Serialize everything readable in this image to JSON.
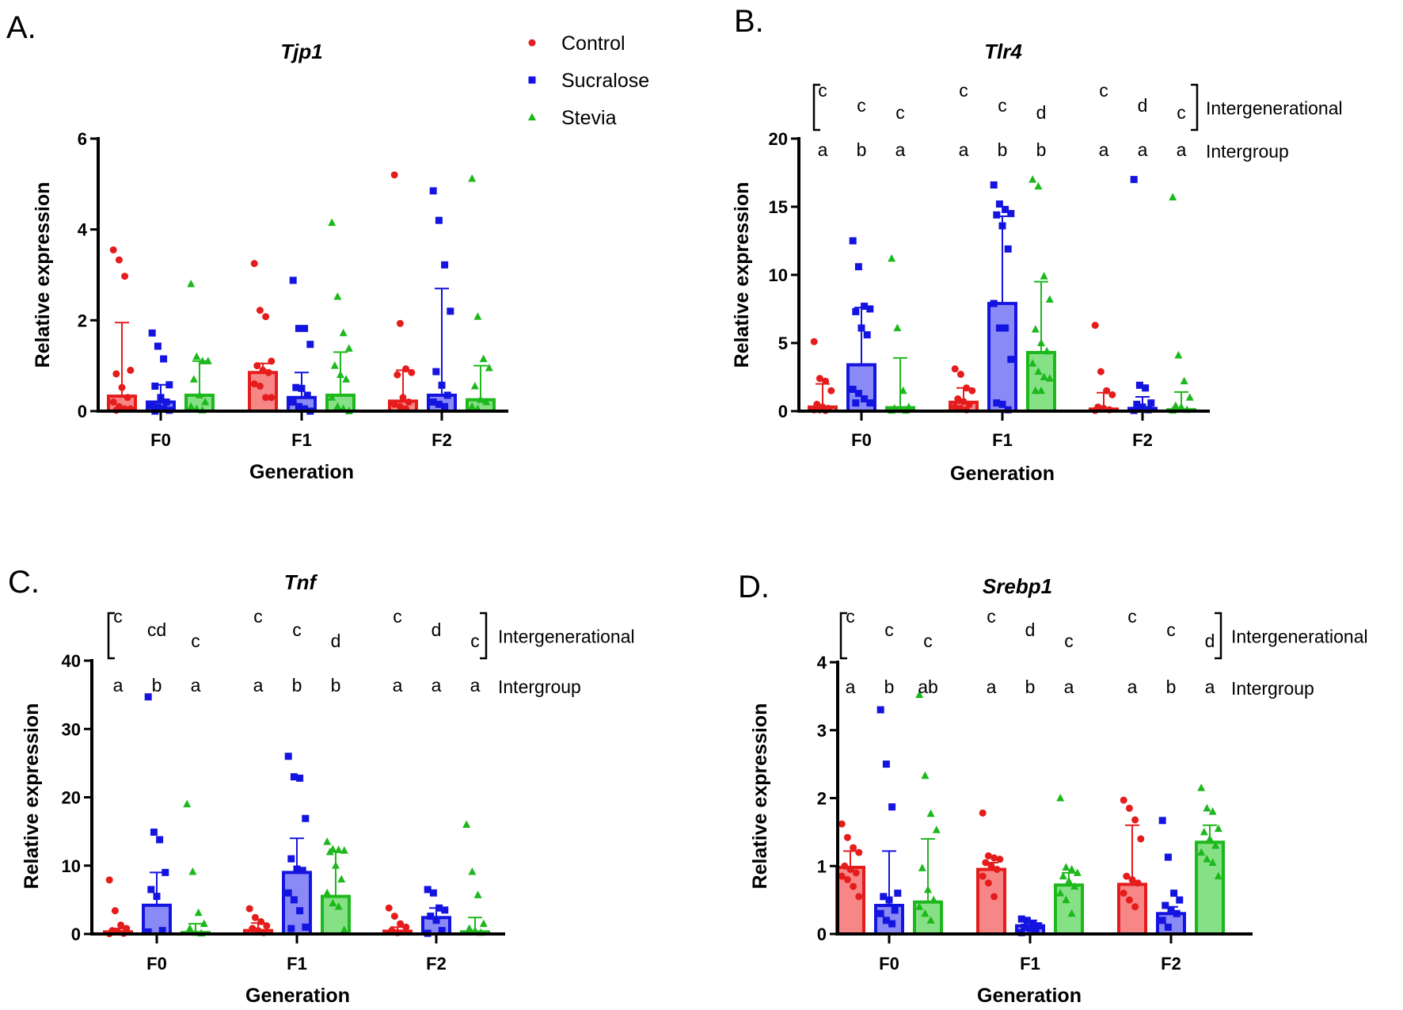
{
  "legend": [
    {
      "name": "Control",
      "color": "#e51c1c",
      "marker": "circle"
    },
    {
      "name": "Sucralose",
      "color": "#1414e0",
      "marker": "square"
    },
    {
      "name": "Stevia",
      "color": "#1cb81c",
      "marker": "triangle"
    }
  ],
  "bar_fill_colors": [
    "#f78787",
    "#8a8af7",
    "#86e086"
  ],
  "annotation_labels": {
    "intergenerational": "Intergenerational",
    "intergroup": "Intergroup"
  },
  "chart_data": [
    {
      "type": "bar",
      "panel_label": "A.",
      "title": "Tjp1",
      "xlabel": "Generation",
      "ylabel": "Relative expression",
      "categories": [
        "F0",
        "F1",
        "F2"
      ],
      "ylim": [
        0,
        6
      ],
      "yticks": [
        "0",
        "2",
        "4",
        "6"
      ],
      "grid": false,
      "legend_position": "top-right",
      "series": [
        {
          "name": "Control",
          "values": [
            0.33,
            0.85,
            0.22
          ],
          "error_upper": [
            1.95,
            1.05,
            0.9
          ],
          "points": [
            [
              3.55,
              3.33,
              2.97,
              0.9,
              0.82,
              0.52,
              0.3,
              0.2,
              0.1,
              0.05,
              0.05,
              0.02
            ],
            [
              3.25,
              2.22,
              2.08,
              1.1,
              1.0,
              0.9,
              0.85,
              0.6,
              0.55,
              0.3,
              0.3
            ],
            [
              5.2,
              1.93,
              0.93,
              0.85,
              0.8,
              0.3,
              0.2,
              0.15,
              0.1,
              0.05
            ]
          ]
        },
        {
          "name": "Sucralose",
          "values": [
            0.2,
            0.3,
            0.35
          ],
          "error_upper": [
            0.58,
            0.85,
            2.7
          ],
          "points": [
            [
              1.72,
              1.43,
              1.15,
              0.58,
              0.55,
              0.3,
              0.2,
              0.12,
              0.08,
              0.05,
              0.02,
              0
            ],
            [
              2.88,
              1.82,
              1.82,
              1.47,
              0.52,
              0.5,
              0.35,
              0.2,
              0.1,
              0.05,
              0
            ],
            [
              4.85,
              4.2,
              3.22,
              2.2,
              0.87,
              0.57,
              0.35,
              0.2,
              0.15,
              0.1
            ]
          ]
        },
        {
          "name": "Stevia",
          "values": [
            0.35,
            0.35,
            0.25
          ],
          "error_upper": [
            1.1,
            1.3,
            1.0
          ],
          "points": [
            [
              2.8,
              1.2,
              1.1,
              1.1,
              0.7,
              0.35,
              0.2,
              0.1,
              0.05,
              0.02
            ],
            [
              4.15,
              2.52,
              1.72,
              1.38,
              1.0,
              0.8,
              0.7,
              0.3,
              0.1,
              0.05,
              0
            ],
            [
              5.12,
              2.08,
              1.15,
              0.95,
              0.55,
              0.25,
              0.2,
              0.1,
              0.05
            ]
          ]
        }
      ]
    },
    {
      "type": "bar",
      "panel_label": "B.",
      "title": "Tlr4",
      "xlabel": "Generation",
      "ylabel": "Relative expression",
      "categories": [
        "F0",
        "F1",
        "F2"
      ],
      "ylim": [
        0,
        20
      ],
      "yticks": [
        "0",
        "5",
        "10",
        "15",
        "20"
      ],
      "grid": false,
      "intergenerational": [
        [
          "c",
          "c",
          "c"
        ],
        [
          "c",
          "c",
          "d"
        ],
        [
          "c",
          "d",
          "c"
        ]
      ],
      "intergroup": [
        [
          "a",
          "b",
          "a"
        ],
        [
          "a",
          "b",
          "b"
        ],
        [
          "a",
          "a",
          "a"
        ]
      ],
      "series": [
        {
          "name": "Control",
          "values": [
            0.3,
            0.65,
            0.15
          ],
          "error_upper": [
            2.0,
            1.7,
            1.35
          ],
          "points": [
            [
              5.1,
              2.4,
              2.2,
              1.5,
              0.5,
              0.3,
              0.2,
              0.1,
              0.1,
              0.05
            ],
            [
              3.1,
              2.7,
              1.7,
              1.5,
              0.9,
              0.7,
              0.5,
              0.3,
              0.2,
              0.1
            ],
            [
              6.3,
              2.9,
              1.5,
              1.2,
              0.3,
              0.2,
              0.1,
              0.05
            ]
          ]
        },
        {
          "name": "Sucralose",
          "values": [
            3.4,
            7.9,
            0.2
          ],
          "error_upper": [
            7.6,
            14.3,
            1.05
          ],
          "points": [
            [
              12.5,
              10.6,
              7.7,
              7.5,
              7.3,
              6.1,
              5.6,
              1.6,
              1.3,
              0.9,
              0.6,
              0.6
            ],
            [
              16.6,
              15.2,
              14.8,
              14.5,
              14.4,
              13.6,
              11.9,
              7.9,
              6.1,
              6.1,
              3.8,
              0.6,
              0.5,
              0.1
            ],
            [
              17,
              1.9,
              1.7,
              0.6,
              0.5,
              0.3,
              0.1,
              0.05
            ]
          ]
        },
        {
          "name": "Stevia",
          "values": [
            0.25,
            4.3,
            0.1
          ],
          "error_upper": [
            3.9,
            9.5,
            1.4
          ],
          "points": [
            [
              11.2,
              6.1,
              1.5,
              0.3,
              0.2,
              0.1,
              0.05,
              0.05
            ],
            [
              17,
              16.5,
              9.9,
              8.2,
              6,
              5,
              4.4,
              3.5,
              2.9,
              2.5,
              2.4,
              1.5,
              1.5
            ],
            [
              15.7,
              4.1,
              2.2,
              1.0,
              0.4,
              0.3,
              0.1,
              0.05
            ]
          ]
        }
      ]
    },
    {
      "type": "bar",
      "panel_label": "C.",
      "title": "Tnf",
      "xlabel": "Generation",
      "ylabel": "Relative expression",
      "categories": [
        "F0",
        "F1",
        "F2"
      ],
      "ylim": [
        0,
        40
      ],
      "yticks": [
        "0",
        "10",
        "20",
        "30",
        "40"
      ],
      "grid": false,
      "intergenerational": [
        [
          "c",
          "cd",
          "c"
        ],
        [
          "c",
          "c",
          "d"
        ],
        [
          "c",
          "d",
          "c"
        ]
      ],
      "intergroup": [
        [
          "a",
          "b",
          "a"
        ],
        [
          "a",
          "b",
          "b"
        ],
        [
          "a",
          "a",
          "a"
        ]
      ],
      "series": [
        {
          "name": "Control",
          "values": [
            0.3,
            0.5,
            0.4
          ],
          "error_upper": [
            0.8,
            1.6,
            1.0
          ],
          "points": [
            [
              7.9,
              3.4,
              1.3,
              0.8,
              0.5,
              0.3,
              0.1,
              0.05
            ],
            [
              3.7,
              2.4,
              1.8,
              1.2,
              0.8,
              0.5,
              0.2
            ],
            [
              3.8,
              2.6,
              1.5,
              1.0,
              0.5,
              0.2
            ]
          ]
        },
        {
          "name": "Sucralose",
          "values": [
            4.2,
            9.0,
            2.4
          ],
          "error_upper": [
            9.0,
            14.0,
            3.8
          ],
          "points": [
            [
              34.7,
              14.9,
              13.8,
              9.0,
              6.5,
              5.5,
              0.5,
              0.3
            ],
            [
              26,
              23,
              22.8,
              16.9,
              11,
              9.5,
              9.3,
              6,
              5,
              3.4,
              1,
              0.8
            ],
            [
              6.5,
              6.0,
              3.8,
              3.5,
              2.6,
              2.0,
              0.5,
              0.1
            ]
          ]
        },
        {
          "name": "Stevia",
          "values": [
            0.2,
            5.5,
            0.3
          ],
          "error_upper": [
            1.5,
            12.0,
            2.4
          ],
          "points": [
            [
              19,
              9.1,
              3.1,
              1.5,
              0.8,
              0.2,
              0.1
            ],
            [
              13.5,
              12.4,
              12.3,
              12.2,
              12,
              10,
              8,
              6,
              4.5,
              4,
              0.6
            ],
            [
              16,
              9.1,
              5.7,
              1.5,
              0.8,
              0.5,
              0.2
            ]
          ]
        }
      ]
    },
    {
      "type": "bar",
      "panel_label": "D.",
      "title": "Srebp1",
      "xlabel": "Generation",
      "ylabel": "Relative expression",
      "categories": [
        "F0",
        "F1",
        "F2"
      ],
      "ylim": [
        0,
        4
      ],
      "yticks": [
        "0",
        "1",
        "2",
        "3",
        "4"
      ],
      "grid": false,
      "intergenerational": [
        [
          "c",
          "c",
          "c"
        ],
        [
          "c",
          "d",
          "c"
        ],
        [
          "c",
          "c",
          "d"
        ]
      ],
      "intergroup": [
        [
          "a",
          "b",
          "ab"
        ],
        [
          "a",
          "b",
          "a"
        ],
        [
          "a",
          "b",
          "a"
        ]
      ],
      "series": [
        {
          "name": "Control",
          "values": [
            0.98,
            0.95,
            0.73
          ],
          "error_upper": [
            1.22,
            1.05,
            1.6
          ],
          "points": [
            [
              1.62,
              1.42,
              1.27,
              1.2,
              1.0,
              0.95,
              0.9,
              0.85,
              0.8,
              0.7,
              0.55
            ],
            [
              1.78,
              1.15,
              1.12,
              1.1,
              1.05,
              1.0,
              0.95,
              0.85,
              0.75,
              0.55
            ],
            [
              1.97,
              1.85,
              1.68,
              1.4,
              0.85,
              0.8,
              0.75,
              0.6,
              0.5,
              0.4
            ]
          ]
        },
        {
          "name": "Sucralose",
          "values": [
            0.42,
            0.12,
            0.3
          ],
          "error_upper": [
            1.22,
            0.2,
            0.4
          ],
          "points": [
            [
              3.3,
              2.5,
              1.87,
              0.6,
              0.55,
              0.5,
              0.35,
              0.3,
              0.2,
              0.15
            ],
            [
              0.22,
              0.2,
              0.15,
              0.12,
              0.1,
              0.08,
              0.05,
              0.02
            ],
            [
              1.67,
              1.13,
              0.6,
              0.5,
              0.42,
              0.35,
              0.3,
              0.2,
              0.1
            ]
          ]
        },
        {
          "name": "Stevia",
          "values": [
            0.47,
            0.72,
            1.35
          ],
          "error_upper": [
            1.4,
            0.9,
            1.6
          ],
          "points": [
            [
              3.52,
              2.33,
              1.77,
              1.53,
              0.97,
              0.65,
              0.5,
              0.4,
              0.3,
              0.2
            ],
            [
              2.0,
              0.98,
              0.95,
              0.9,
              0.85,
              0.78,
              0.7,
              0.6,
              0.5,
              0.3
            ],
            [
              2.15,
              1.85,
              1.8,
              1.55,
              1.5,
              1.4,
              1.3,
              1.2,
              1.1,
              1.05,
              0.85
            ]
          ]
        }
      ]
    }
  ]
}
